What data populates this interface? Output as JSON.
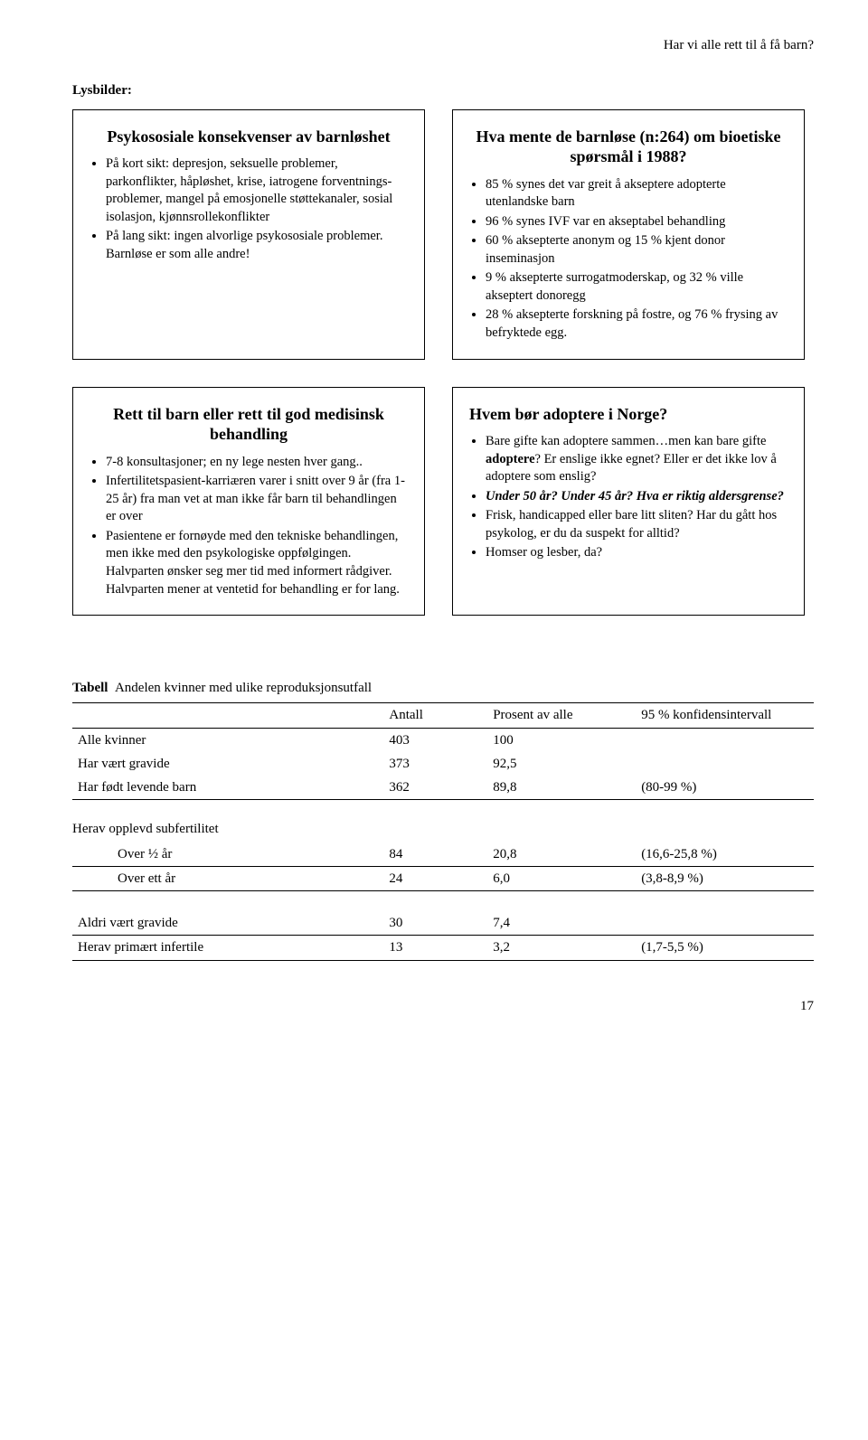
{
  "header": "Har vi alle rett til å få barn?",
  "section_label": "Lysbilder:",
  "slides": [
    {
      "title": "Psykososiale konsekvenser av barnløshet",
      "items": [
        "På kort sikt: depresjon, seksuelle problemer, parkonflikter, håpløshet, krise, iatrogene forventnings-problemer, mangel på emosjonelle støttekanaler, sosial isolasjon, kjønnsrollekonflikter",
        "På lang sikt: ingen alvorlige psykososiale problemer. Barnløse er som alle andre!"
      ]
    },
    {
      "title": "Hva mente de barnløse (n:264) om bioetiske spørsmål i 1988?",
      "items": [
        "85 % synes det var greit å akseptere adopterte utenlandske barn",
        "96 % synes IVF var en akseptabel behandling",
        "60 % aksepterte anonym og 15 % kjent donor inseminasjon",
        "9 % aksepterte surrogatmoderskap, og 32 % ville akseptert donoregg",
        "28 % aksepterte forskning på fostre, og 76 % frysing av befryktede egg."
      ]
    },
    {
      "title": "Rett til barn eller rett til god medisinsk behandling",
      "items": [
        "7-8 konsultasjoner; en ny lege nesten hver gang..",
        "Infertilitetspasient-karriæren varer i snitt over 9 år (fra 1-25 år) fra man vet at man ikke får barn til behandlingen er over",
        "Pasientene er fornøyde med den tekniske behandlingen, men ikke med den psykologiske oppfølgingen. Halvparten ønsker seg mer tid med informert rådgiver. Halvparten mener at ventetid for behandling er for lang."
      ]
    },
    {
      "title": "Hvem bør adoptere i Norge?",
      "items_html": [
        "Bare gifte kan adoptere sammen…men kan bare gifte <span class='b'>adoptere</span>? Er enslige ikke egnet? Eller er det ikke lov å adoptere som enslig?",
        "<span class='b em'>Under 50 år? Under 45 år? Hva er riktig aldersgrense?</span>",
        "Frisk, handicapped eller bare litt sliten? Har du gått hos psykolog, er du da suspekt for alltid?",
        "Homser og lesber, da?"
      ]
    }
  ],
  "table": {
    "caption_prefix": "Tabell",
    "caption": "Andelen kvinner med ulike reproduksjonsutfall",
    "head": {
      "c1": "",
      "c2": "Antall",
      "c3": "Prosent av alle",
      "c4": "95 % konfidensintervall"
    },
    "block1": [
      {
        "label": "Alle kvinner",
        "n": "403",
        "p": "100",
        "ci": ""
      },
      {
        "label": "Har vært gravide",
        "n": "373",
        "p": "92,5",
        "ci": ""
      },
      {
        "label": "Har født levende barn",
        "n": "362",
        "p": "89,8",
        "ci": "(80-99 %)"
      }
    ],
    "sub_head": "Herav opplevd subfertilitet",
    "block2": [
      {
        "label": "Over ½ år",
        "n": "84",
        "p": "20,8",
        "ci": "(16,6-25,8 %)"
      },
      {
        "label": "Over ett år",
        "n": "24",
        "p": "6,0",
        "ci": "(3,8-8,9 %)"
      }
    ],
    "block3": [
      {
        "label": "Aldri vært gravide",
        "n": "30",
        "p": "7,4",
        "ci": ""
      },
      {
        "label": "Herav primært infertile",
        "n": "13",
        "p": "3,2",
        "ci": "(1,7-5,5 %)"
      }
    ]
  },
  "page_number": "17",
  "colors": {
    "text": "#000000",
    "bg": "#ffffff",
    "border": "#000000"
  }
}
